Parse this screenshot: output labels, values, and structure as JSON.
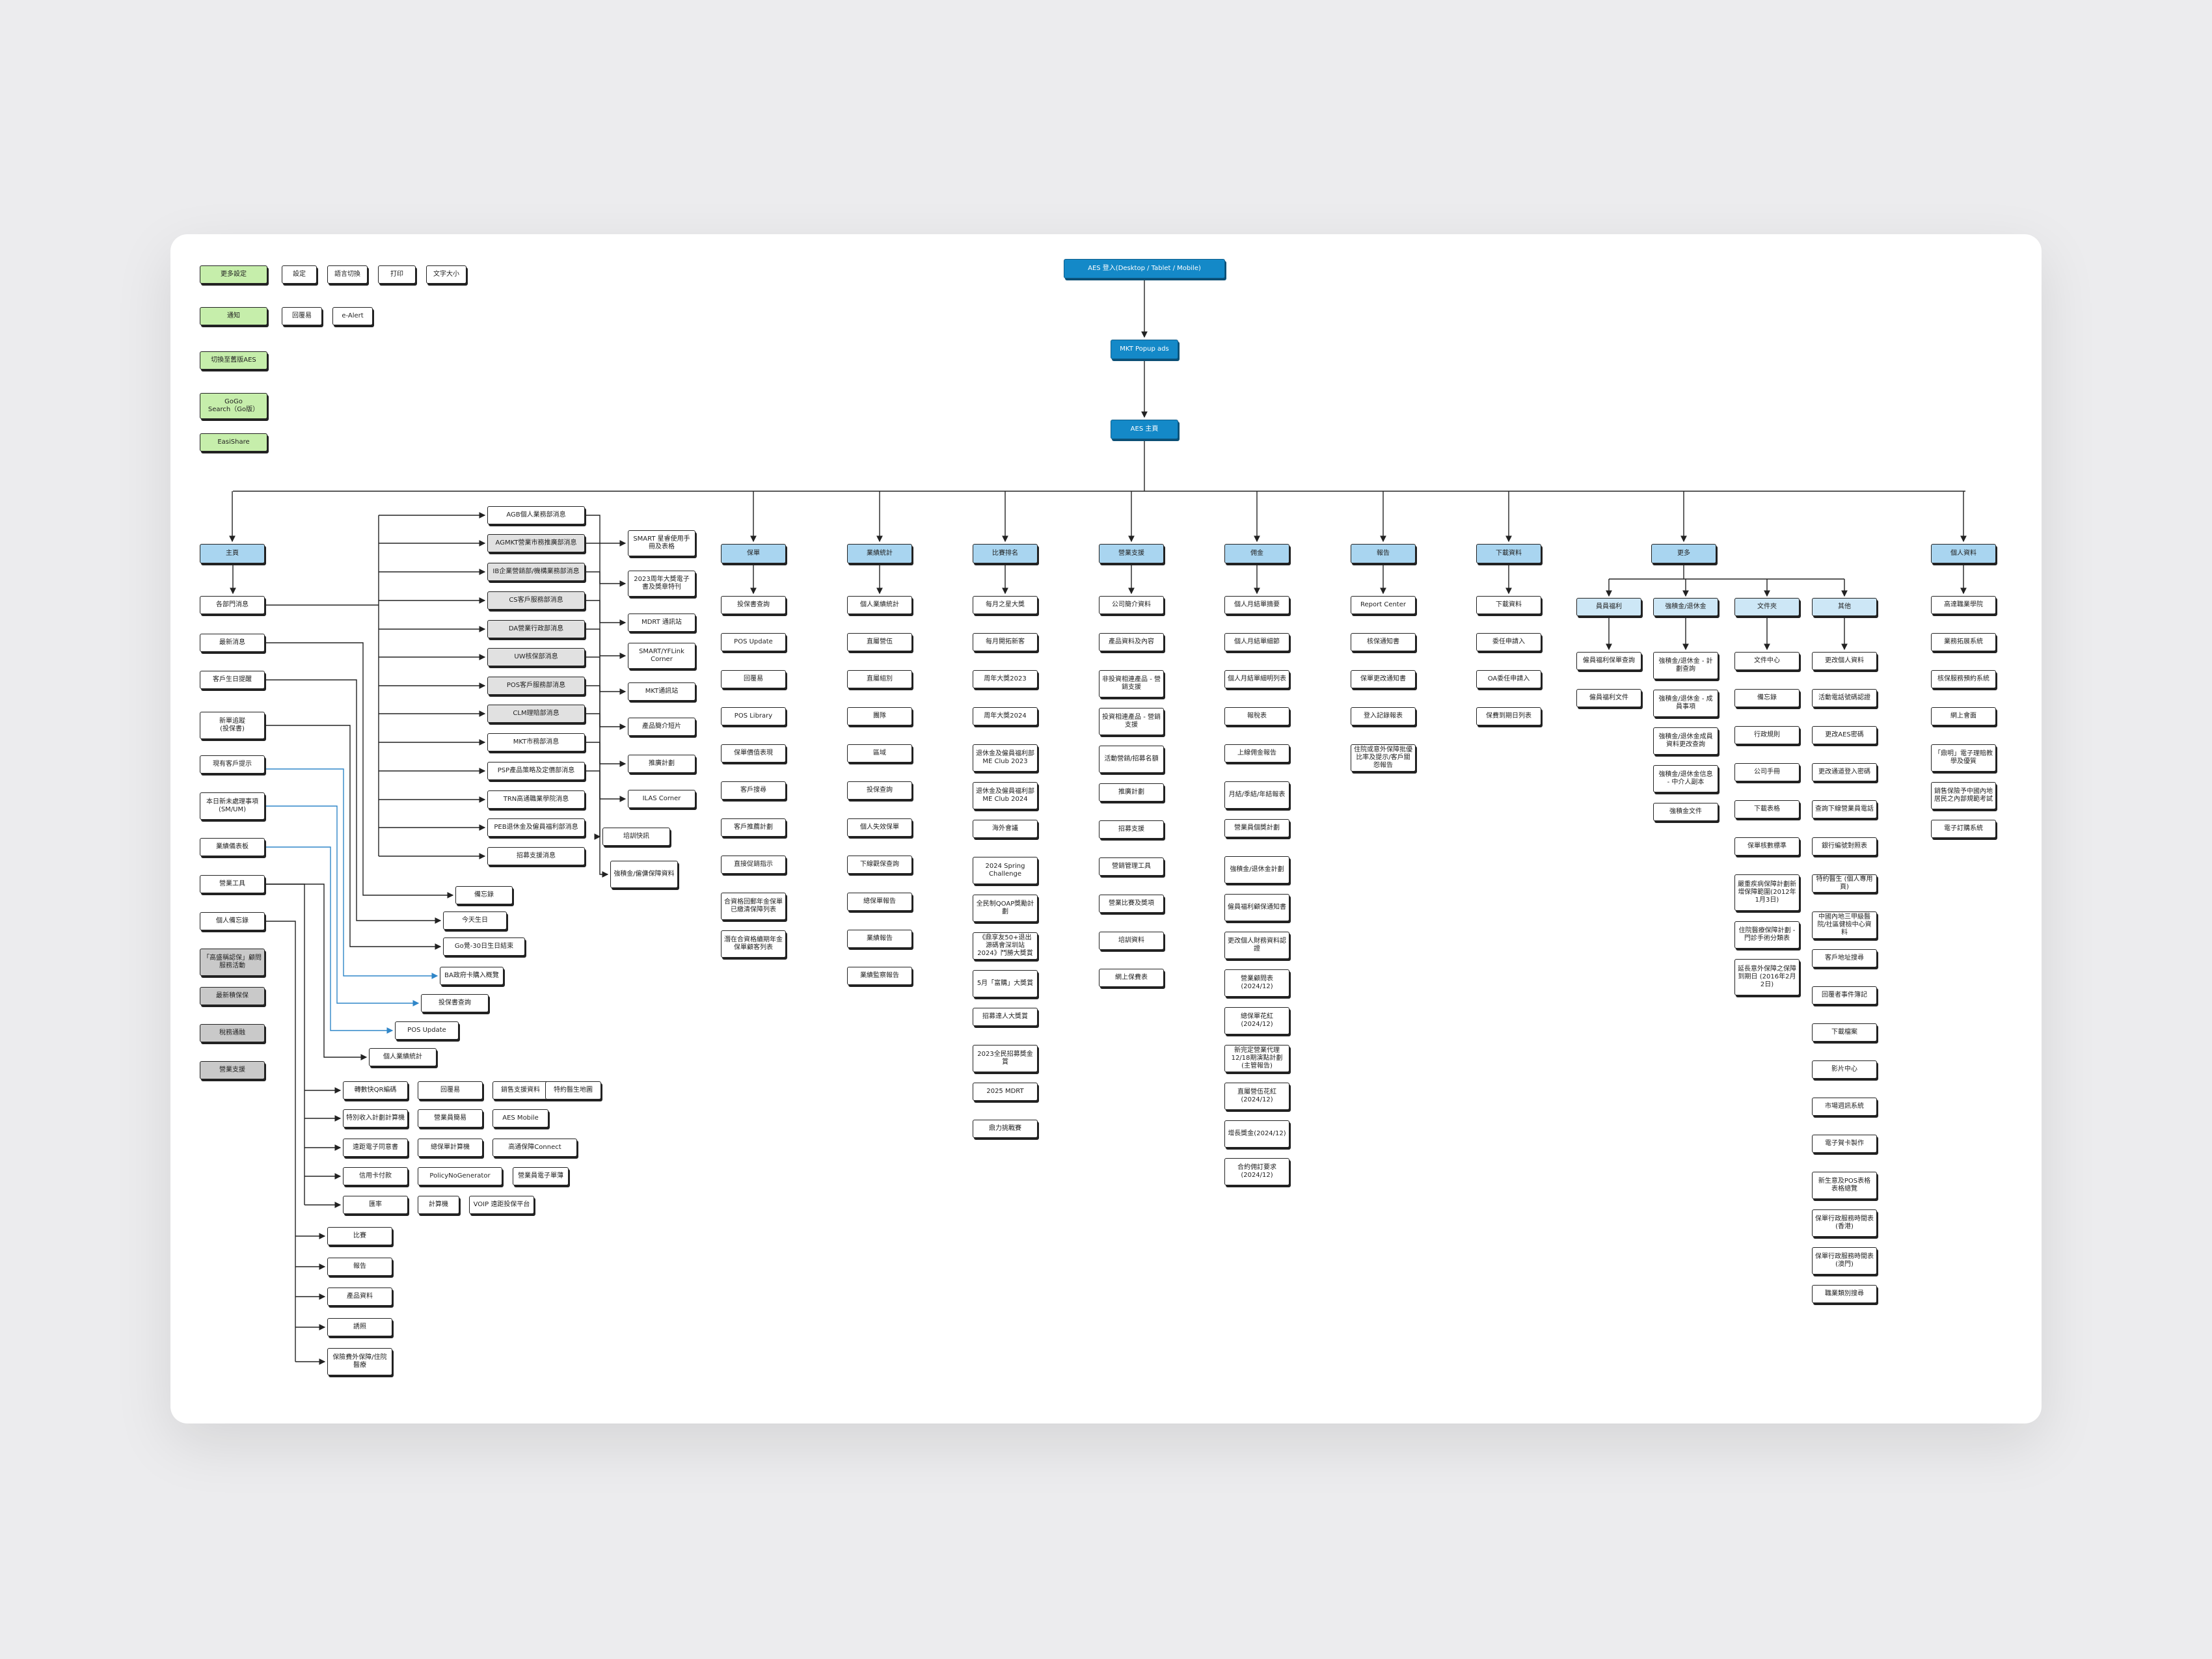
{
  "diagram": {
    "root": {
      "label": "AES 登入(Desktop / Tablet / Mobile)"
    },
    "popup": {
      "label": "MKT Popup ads"
    },
    "home": {
      "label": "AES 主頁"
    },
    "quick_links": [
      "更多設定",
      "設定",
      "語言切換",
      "打印",
      "文字大小",
      "通知",
      "回覆易",
      "e-Alert",
      "切換至舊版AES",
      "GoGo\nSearch（Go版）",
      "EasiShare"
    ],
    "categories": [
      {
        "label": "主頁",
        "items": [
          "各部門消息",
          "最新消息",
          "客戶生日提醒",
          "新單追蹤\n(投保書)",
          "現有客戶提示",
          "本日新未處理事項\n(SM/UM)",
          "業績儀表板",
          "營業工具",
          "個人備忘錄",
          "「高盛稱認保」顧問服務活動",
          "最新積保保",
          "稅務通融",
          "營業支援"
        ]
      },
      {
        "label": "保單",
        "items": [
          "投保書查詢",
          "POS Update",
          "回覆易",
          "POS Library",
          "保單價值表現",
          "客戶搜尋",
          "客戶推薦計劃",
          "直接促銷指示",
          "合資格回郵年金保單已繳清保障列表",
          "潛在合資格續期年金保單顧客列表"
        ]
      },
      {
        "label": "業績統計",
        "items": [
          "個人業績統計",
          "直屬營伍",
          "直屬組別",
          "團隊",
          "區域",
          "投保查詢",
          "個人失效保單",
          "下線觀保查詢",
          "總保單報告",
          "業績報告",
          "業績監察報告"
        ]
      },
      {
        "label": "比賽排名",
        "items": [
          "每月之星大獎",
          "每月開拓新客",
          "周年大獎2023",
          "周年大獎2024",
          "退休金及僱員福利部ME Club 2023",
          "退休金及僱員福利部ME Club 2024",
          "海外會議",
          "2024 Spring Challenge",
          "全民制QOAP獎勵計劃",
          "《鼎享友50+退出源碼會深圳站2024》鬥勝大獎賞",
          "5月「富購」大獎賞",
          "招募達人大獎賞",
          "2023全民招募獎金賞",
          "2025 MDRT",
          "鼎力挑戰賽"
        ]
      },
      {
        "label": "營業支援",
        "items": [
          "公司簡介資料",
          "產品資料及內容",
          "非投資相連產品 - 營銷支援",
          "投資相連產品 - 營銷支援",
          "活動營銷/招募名額",
          "推廣計劃",
          "招募支援",
          "營銷管理工具",
          "營業比賽及獎項",
          "培訓資料",
          "網上保費表"
        ]
      },
      {
        "label": "佣金",
        "items": [
          "個人月結單摘要",
          "個人月結單細節",
          "個人月結單細明列表",
          "報稅表",
          "上線佣金報告",
          "月結/季結/年結報表",
          "營業員個獎計劃",
          "強積金/退休金計劃",
          "僱員福利顧保通知書",
          "更改個人財務資料認證",
          "營業顧問表(2024/12)",
          "總保單花紅(2024/12)",
          "新完定營業代理12/18期演點計劃(主管報告)",
          "直屬營伍花紅(2024/12)",
          "增長獎金(2024/12)",
          "合約佣訂要求(2024/12)"
        ]
      },
      {
        "label": "報告",
        "items": [
          "Report Center",
          "核保通知書",
          "保單更改通知書",
          "登入記錄報表",
          "住院或意外保障批優比率及提示/客戶關怨報告"
        ]
      },
      {
        "label": "下載資料",
        "items": [
          "下載資料",
          "委任申請入",
          "OA委任申請入",
          "保費到期日列表"
        ]
      },
      {
        "label": "更多",
        "items": [
          "員員福利",
          "強積金/退休金",
          "文件夾",
          "其他"
        ]
      },
      {
        "label": "個人資料",
        "items": [
          "高達職業學院",
          "業務拓展系統",
          "核保服務預約系統",
          "網上會面",
          "「鼎明」電子理賠教學及優質",
          "銷售保險予中國內地居民之內部規範考試",
          "電子訂購系統"
        ]
      }
    ],
    "home_news": [
      "AGB個人業務部消息",
      "AGMKT營業市務推廣部消息",
      "IB企業營銷部/機構業務部消息",
      "CS客戶服務部消息",
      "DA營業行政部消息",
      "UW核保部消息",
      "POS客戶服務部消息",
      "CLM理賠部消息",
      "MKT市務部消息",
      "PSP產品策略及定價部消息",
      "TRN高通職業學院消息",
      "PEB退休金及僱員福利部消息",
      "招募支援消息"
    ],
    "home_news_2": [
      "SMART 星睿使用手冊及表格",
      "2023周年大獎電子書及獎章特刊",
      "MDRT 通訊站",
      "SMART/YFLink Corner",
      "MKT通訊站",
      "產品簡介短片",
      "推廣計劃",
      "ILAS Corner",
      "培訓快訊",
      "強積金/僱傭保障資料"
    ],
    "home_links": [
      "備忘錄",
      "今天生日",
      "Go覺-30日生日結束",
      "BA政府卡購入概覽",
      "投保書查詢",
      "POS Update",
      "個人業績統計"
    ],
    "tools": [
      [
        "轉數快QR編碼",
        "回覆易",
        "銷售支援資料",
        "特約醫生地圖"
      ],
      [
        "特別收入計劃計算機",
        "營業員簡易",
        "AES Mobile"
      ],
      [
        "遠距電子同意書",
        "總保單計算機",
        "高通保障Connect"
      ],
      [
        "信用卡付款",
        "PolicyNoGenerator",
        "營業員電子單薄"
      ],
      [
        "匯率",
        "計算機",
        "VOIP 遠距投保平台"
      ]
    ],
    "support_links": [
      "比賽",
      "報告",
      "產品資料",
      "誘照",
      "保險費外保障/住院醫療"
    ],
    "more": {
      "員員福利": [
        "僱員福利保單查詢",
        "僱員福利文件"
      ],
      "強積金/退休金": [
        "強積金/退休金 - 計劃查詢",
        "強積金/退休金 - 成員事項",
        "強積金/退休金成員資料更改查詢",
        "強積金/退休金信息 - 中介人副本",
        "強積金文件"
      ],
      "文件夾": [
        "文件中心",
        "備忘錄",
        "行政規則",
        "公司手冊",
        "下載表格",
        "保單核數標準",
        "嚴重疾病保障計劃新增保障範圍(2012年1月3日)",
        "住院醫療保障計劃 - 門診手術分類表",
        "延長意外保障之保障到期日 (2016年2月2日)"
      ],
      "其他": [
        "更改個人資料",
        "活動電話號碼認證",
        "更改AES密碼",
        "更改通道登入密碼",
        "查詢下線營業員電話",
        "銀行編號對照表",
        "特約醫生 (個人專用頁)",
        "中國內地三甲級醫院/社區健檢中心資料",
        "客戶地址搜尋",
        "回覆者事件簿記",
        "下載檔案",
        "影片中心",
        "市場週訊系統",
        "電子賀卡製作",
        "新生意及POS表格表格總覽",
        "保單行政服務時間表(香港)",
        "保單行政服務時間表(澳門)",
        "職業類別搜尋"
      ]
    }
  }
}
